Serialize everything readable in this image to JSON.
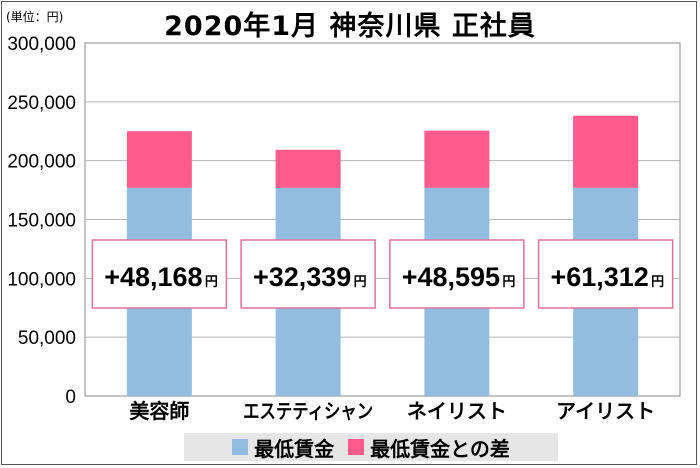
{
  "unit_label": "(単位：円)",
  "title": "2020年1月 神奈川県 正社員",
  "colors": {
    "base": "#93bde0",
    "diff": "#ff5c8d",
    "box_border": "#e0709a",
    "grid": "#b5b5b5"
  },
  "legend": [
    {
      "label": "最低賃金",
      "color": "#93bde0"
    },
    {
      "label": "最低賃金との差",
      "color": "#ff5c8d"
    }
  ],
  "chart_data": {
    "type": "bar",
    "stacked": true,
    "categories": [
      "美容師",
      "エステティシャン",
      "ネイリスト",
      "アイリスト"
    ],
    "series": [
      {
        "name": "最低賃金",
        "values": [
          176904,
          176904,
          176904,
          176904
        ]
      },
      {
        "name": "最低賃金との差",
        "values": [
          48168,
          32339,
          48595,
          61312
        ]
      }
    ],
    "annotations": [
      "+48,168",
      "+32,339",
      "+48,595",
      "+61,312"
    ],
    "annotation_unit": "円",
    "yticks": [
      "0",
      "50,000",
      "100,000",
      "150,000",
      "200,000",
      "250,000",
      "300,000"
    ],
    "ylim": [
      0,
      300000
    ],
    "grid": true,
    "legend_position": "bottom"
  }
}
